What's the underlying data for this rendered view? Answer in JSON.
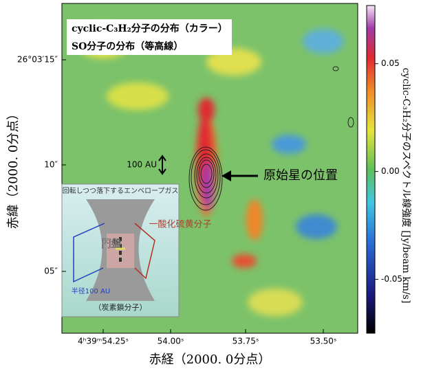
{
  "legend_box": [
    "cyclic-C₃H₂分子の分布（カラー）",
    "SO分子の分布（等高線）"
  ],
  "x_axis": {
    "label": "赤経（2000. 0分点）",
    "ticks": [
      "4ʰ39ᵐ54.25ˢ",
      "54.00ˢ",
      "53.75ˢ",
      "53.50ˢ"
    ]
  },
  "y_axis": {
    "label": "赤緯（2000. 0分点）",
    "ticks": [
      "26°03′15″",
      "10″",
      "05″"
    ]
  },
  "colorbar": {
    "label": "cyclic-C₃H₂分子のスペクトル線強度 [Jy/beam km/s]",
    "lim": [
      -0.075,
      0.077
    ],
    "ticks": [
      0.05,
      {
        "value": 0,
        "label": "0.00"
      },
      -0.05
    ]
  },
  "annotations": {
    "scale": "100 AU",
    "protostar": "原始星の位置"
  },
  "inset": {
    "envelope": "回転しつつ落下するエンベロープガス",
    "disk": "円盤",
    "so": "一酸化硫黄分子",
    "radius": "半径100 AU",
    "carbon": "（炭素鎖分子）"
  }
}
